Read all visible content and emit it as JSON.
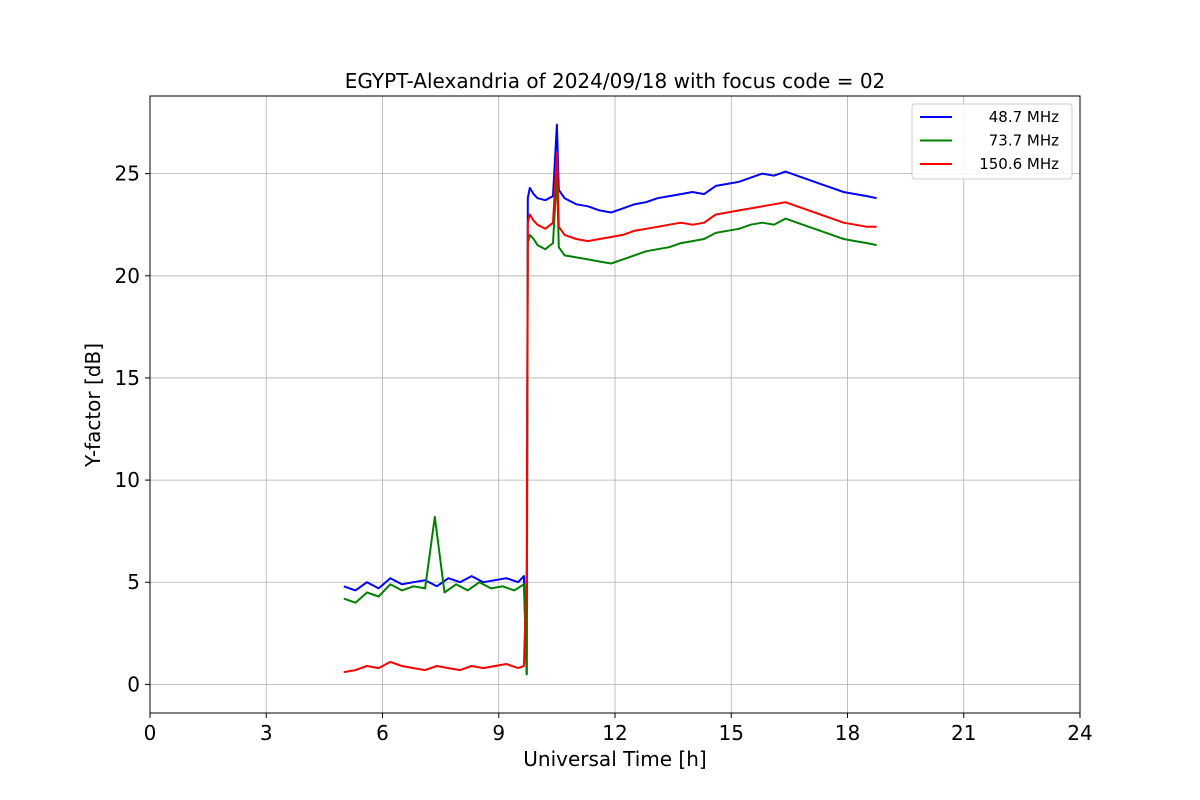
{
  "chart_data": {
    "type": "line",
    "title": "EGYPT-Alexandria of 2024/09/18 with focus code = 02",
    "xlabel": "Universal Time [h]",
    "ylabel": "Y-factor [dB]",
    "xlim": [
      0,
      24
    ],
    "ylim": [
      -1.4,
      28.8
    ],
    "xticks": [
      0,
      3,
      6,
      9,
      12,
      15,
      18,
      21,
      24
    ],
    "yticks": [
      0,
      5,
      10,
      15,
      20,
      25
    ],
    "grid": true,
    "legend_position": "top-right",
    "series": [
      {
        "name": "48.7 MHz",
        "color": "#0000ff",
        "x": [
          5.0,
          5.3,
          5.6,
          5.9,
          6.2,
          6.5,
          6.8,
          7.1,
          7.4,
          7.7,
          8.0,
          8.3,
          8.6,
          8.9,
          9.2,
          9.5,
          9.65,
          9.72,
          9.75,
          9.8,
          9.9,
          10.0,
          10.2,
          10.4,
          10.5,
          10.55,
          10.7,
          11.0,
          11.3,
          11.6,
          11.9,
          12.2,
          12.5,
          12.8,
          13.1,
          13.4,
          13.7,
          14.0,
          14.3,
          14.6,
          14.9,
          15.2,
          15.5,
          15.8,
          16.1,
          16.4,
          16.7,
          17.0,
          17.3,
          17.6,
          17.9,
          18.2,
          18.5,
          18.75
        ],
        "y": [
          4.8,
          4.6,
          5.0,
          4.7,
          5.2,
          4.9,
          5.0,
          5.1,
          4.8,
          5.2,
          5.0,
          5.3,
          5.0,
          5.1,
          5.2,
          5.0,
          5.3,
          0.5,
          23.8,
          24.3,
          24.0,
          23.8,
          23.7,
          23.9,
          27.4,
          24.2,
          23.8,
          23.5,
          23.4,
          23.2,
          23.1,
          23.3,
          23.5,
          23.6,
          23.8,
          23.9,
          24.0,
          24.1,
          24.0,
          24.4,
          24.5,
          24.6,
          24.8,
          25.0,
          24.9,
          25.1,
          24.9,
          24.7,
          24.5,
          24.3,
          24.1,
          24.0,
          23.9,
          23.8
        ]
      },
      {
        "name": "73.7 MHz",
        "color": "#008000",
        "x": [
          5.0,
          5.3,
          5.6,
          5.9,
          6.2,
          6.5,
          6.8,
          7.1,
          7.35,
          7.6,
          7.9,
          8.2,
          8.5,
          8.8,
          9.1,
          9.4,
          9.65,
          9.72,
          9.75,
          9.8,
          9.9,
          10.0,
          10.2,
          10.4,
          10.5,
          10.55,
          10.7,
          11.0,
          11.3,
          11.6,
          11.9,
          12.2,
          12.5,
          12.8,
          13.1,
          13.4,
          13.7,
          14.0,
          14.3,
          14.6,
          14.9,
          15.2,
          15.5,
          15.8,
          16.1,
          16.4,
          16.7,
          17.0,
          17.3,
          17.6,
          17.9,
          18.2,
          18.5,
          18.75
        ],
        "y": [
          4.2,
          4.0,
          4.5,
          4.3,
          4.9,
          4.6,
          4.8,
          4.7,
          8.2,
          4.5,
          4.9,
          4.6,
          5.0,
          4.7,
          4.8,
          4.6,
          4.9,
          0.5,
          21.6,
          22.0,
          21.8,
          21.5,
          21.3,
          21.6,
          25.0,
          21.4,
          21.0,
          20.9,
          20.8,
          20.7,
          20.6,
          20.8,
          21.0,
          21.2,
          21.3,
          21.4,
          21.6,
          21.7,
          21.8,
          22.1,
          22.2,
          22.3,
          22.5,
          22.6,
          22.5,
          22.8,
          22.6,
          22.4,
          22.2,
          22.0,
          21.8,
          21.7,
          21.6,
          21.5
        ]
      },
      {
        "name": "150.6 MHz",
        "color": "#ff0000",
        "x": [
          5.0,
          5.3,
          5.6,
          5.9,
          6.2,
          6.5,
          6.8,
          7.1,
          7.4,
          7.7,
          8.0,
          8.3,
          8.6,
          8.9,
          9.2,
          9.5,
          9.65,
          9.72,
          9.75,
          9.8,
          9.9,
          10.0,
          10.2,
          10.4,
          10.5,
          10.55,
          10.7,
          11.0,
          11.3,
          11.6,
          11.9,
          12.2,
          12.5,
          12.8,
          13.1,
          13.4,
          13.7,
          14.0,
          14.3,
          14.6,
          14.9,
          15.2,
          15.5,
          15.8,
          16.1,
          16.4,
          16.7,
          17.0,
          17.3,
          17.6,
          17.9,
          18.2,
          18.5,
          18.75
        ],
        "y": [
          0.6,
          0.7,
          0.9,
          0.8,
          1.1,
          0.9,
          0.8,
          0.7,
          0.9,
          0.8,
          0.7,
          0.9,
          0.8,
          0.9,
          1.0,
          0.8,
          0.9,
          5.5,
          22.6,
          23.0,
          22.7,
          22.5,
          22.3,
          22.6,
          26.0,
          22.4,
          22.0,
          21.8,
          21.7,
          21.8,
          21.9,
          22.0,
          22.2,
          22.3,
          22.4,
          22.5,
          22.6,
          22.5,
          22.6,
          23.0,
          23.1,
          23.2,
          23.3,
          23.4,
          23.5,
          23.6,
          23.4,
          23.2,
          23.0,
          22.8,
          22.6,
          22.5,
          22.4,
          22.4
        ]
      }
    ]
  }
}
